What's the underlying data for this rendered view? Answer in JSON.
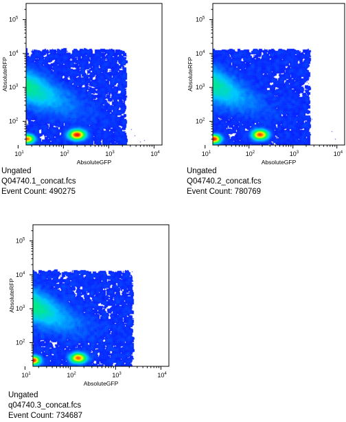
{
  "colors": {
    "density_low": "#0a00ff",
    "density_mid1": "#00d0ff",
    "density_mid2": "#00ff40",
    "density_mid3": "#ffff00",
    "density_high": "#ff0000"
  },
  "chart_data": [
    {
      "type": "scatter",
      "subtype": "density-dot-plot",
      "xlabel": "AbsoluteGFP",
      "ylabel": "AbsoluteRFP",
      "xscale": "log",
      "yscale": "log",
      "xlim": [
        15,
        15000
      ],
      "ylim": [
        20,
        300000
      ],
      "x_ticks": [
        {
          "base": "10",
          "exp": "1",
          "value": 10
        },
        {
          "base": "10",
          "exp": "2",
          "value": 100
        },
        {
          "base": "10",
          "exp": "3",
          "value": 1000
        },
        {
          "base": "10",
          "exp": "4",
          "value": 10000
        }
      ],
      "y_ticks": [
        {
          "base": "10",
          "exp": "2",
          "value": 100
        },
        {
          "base": "10",
          "exp": "3",
          "value": 1000
        },
        {
          "base": "10",
          "exp": "4",
          "value": 10000
        },
        {
          "base": "10",
          "exp": "5",
          "value": 100000
        }
      ],
      "gate": "Ungated",
      "sample": "Q04740.1_concat.fcs",
      "event_count_label": "Event Count: 490275",
      "populations": [
        {
          "x": 12,
          "y": 1200,
          "spread": 0.9,
          "weight": 1.0
        },
        {
          "x": 200,
          "y": 40,
          "spread": 0.35,
          "weight": 0.35
        },
        {
          "x": 16,
          "y": 30,
          "spread": 0.3,
          "weight": 0.2
        }
      ]
    },
    {
      "type": "scatter",
      "subtype": "density-dot-plot",
      "xlabel": "AbsoluteGFP",
      "ylabel": "AbsoluteRFP",
      "xscale": "log",
      "yscale": "log",
      "xlim": [
        15,
        15000
      ],
      "ylim": [
        20,
        300000
      ],
      "x_ticks": [
        {
          "base": "10",
          "exp": "1",
          "value": 10
        },
        {
          "base": "10",
          "exp": "2",
          "value": 100
        },
        {
          "base": "10",
          "exp": "3",
          "value": 1000
        },
        {
          "base": "10",
          "exp": "4",
          "value": 10000
        }
      ],
      "y_ticks": [
        {
          "base": "10",
          "exp": "2",
          "value": 100
        },
        {
          "base": "10",
          "exp": "3",
          "value": 1000
        },
        {
          "base": "10",
          "exp": "4",
          "value": 10000
        },
        {
          "base": "10",
          "exp": "5",
          "value": 100000
        }
      ],
      "gate": "Ungated",
      "sample": "Q04740.2_concat.fcs",
      "event_count_label": "Event Count: 780769",
      "populations": [
        {
          "x": 10,
          "y": 1500,
          "spread": 0.9,
          "weight": 1.0
        },
        {
          "x": 180,
          "y": 40,
          "spread": 0.35,
          "weight": 0.3
        },
        {
          "x": 16,
          "y": 30,
          "spread": 0.3,
          "weight": 0.25
        }
      ]
    },
    {
      "type": "scatter",
      "subtype": "density-dot-plot",
      "xlabel": "AbsoluteGFP",
      "ylabel": "AbsoluteRFP",
      "xscale": "log",
      "yscale": "log",
      "xlim": [
        15,
        15000
      ],
      "ylim": [
        20,
        300000
      ],
      "x_ticks": [
        {
          "base": "10",
          "exp": "1",
          "value": 10
        },
        {
          "base": "10",
          "exp": "2",
          "value": 100
        },
        {
          "base": "10",
          "exp": "3",
          "value": 1000
        },
        {
          "base": "10",
          "exp": "4",
          "value": 10000
        }
      ],
      "y_ticks": [
        {
          "base": "10",
          "exp": "2",
          "value": 100
        },
        {
          "base": "10",
          "exp": "3",
          "value": 1000
        },
        {
          "base": "10",
          "exp": "4",
          "value": 10000
        },
        {
          "base": "10",
          "exp": "5",
          "value": 100000
        }
      ],
      "gate": "Ungated",
      "sample": "q04740.3_concat.fcs",
      "event_count_label": "Event Count: 734687",
      "populations": [
        {
          "x": 10,
          "y": 1500,
          "spread": 0.9,
          "weight": 1.0
        },
        {
          "x": 150,
          "y": 35,
          "spread": 0.35,
          "weight": 0.25
        },
        {
          "x": 15,
          "y": 30,
          "spread": 0.3,
          "weight": 0.25
        }
      ]
    }
  ]
}
